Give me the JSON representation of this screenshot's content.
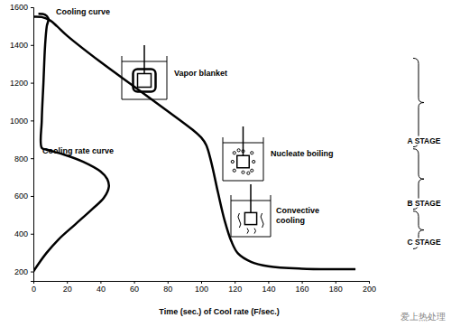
{
  "chart_data": {
    "type": "line",
    "x_label": "Time (sec.) of Cool rate (F/sec.)",
    "xlim": [
      0,
      200
    ],
    "xticks": [
      0,
      20,
      40,
      60,
      80,
      100,
      120,
      140,
      160,
      180,
      200
    ],
    "ylim": [
      150,
      1600
    ],
    "yticks": [
      200,
      400,
      600,
      800,
      1000,
      1200,
      1400,
      1600
    ],
    "series": [
      {
        "name": "Cooling curve",
        "color": "#000000",
        "x": [
          0,
          5,
          10,
          14,
          20,
          40,
          60,
          80,
          95,
          100,
          103,
          106,
          110,
          114,
          118,
          122,
          130,
          140,
          160,
          180,
          192
        ],
        "values": [
          1550,
          1548,
          1530,
          1500,
          1450,
          1310,
          1180,
          1050,
          950,
          910,
          870,
          780,
          620,
          470,
          360,
          295,
          250,
          228,
          215,
          212,
          212
        ]
      },
      {
        "name": "Cooling rate curve",
        "color": "#000000",
        "x": [
          0,
          3,
          8,
          15,
          25,
          35,
          42,
          45,
          44,
          40,
          30,
          18,
          8,
          5,
          5,
          6,
          7,
          8,
          9,
          7,
          3
        ],
        "values": [
          200,
          240,
          300,
          370,
          450,
          530,
          590,
          650,
          690,
          730,
          780,
          820,
          845,
          855,
          1000,
          1200,
          1400,
          1500,
          1540,
          1560,
          1565
        ]
      }
    ],
    "annotations": [
      "Vapor blanket",
      "Nucleate boiling",
      "Convective cooling"
    ],
    "stages": [
      {
        "label": "A STAGE",
        "range": [
          1330,
          860
        ]
      },
      {
        "label": "B STAGE",
        "range": [
          850,
          530
        ]
      },
      {
        "label": "C STAGE",
        "range": [
          520,
          320
        ]
      }
    ],
    "watermark": "爱上热处理"
  }
}
